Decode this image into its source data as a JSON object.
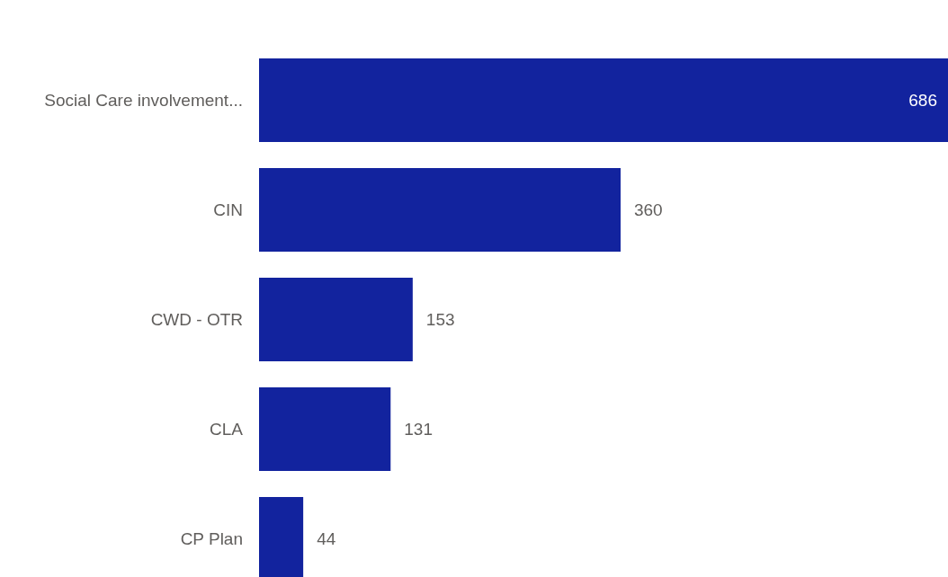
{
  "chart_data": {
    "type": "bar",
    "orientation": "horizontal",
    "categories": [
      "Social Care involvement...",
      "CIN",
      "CWD - OTR",
      "CLA",
      "CP Plan"
    ],
    "values": [
      686,
      360,
      153,
      131,
      44
    ],
    "color": "#12239e",
    "data_labels": true
  }
}
